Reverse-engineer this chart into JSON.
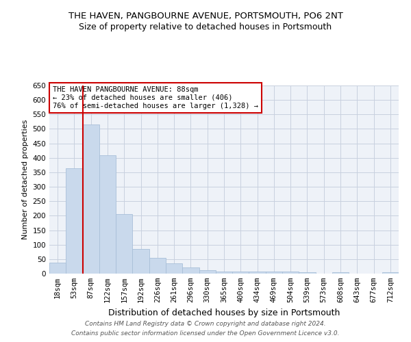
{
  "title": "THE HAVEN, PANGBOURNE AVENUE, PORTSMOUTH, PO6 2NT",
  "subtitle": "Size of property relative to detached houses in Portsmouth",
  "xlabel": "Distribution of detached houses by size in Portsmouth",
  "ylabel": "Number of detached properties",
  "bar_labels": [
    "18sqm",
    "53sqm",
    "87sqm",
    "122sqm",
    "157sqm",
    "192sqm",
    "226sqm",
    "261sqm",
    "296sqm",
    "330sqm",
    "365sqm",
    "400sqm",
    "434sqm",
    "469sqm",
    "504sqm",
    "539sqm",
    "573sqm",
    "608sqm",
    "643sqm",
    "677sqm",
    "712sqm"
  ],
  "bar_values": [
    38,
    365,
    515,
    410,
    205,
    85,
    55,
    35,
    22,
    12,
    8,
    8,
    8,
    8,
    8,
    5,
    0,
    5,
    0,
    0,
    5
  ],
  "bar_color": "#c9d9ec",
  "bar_edge_color": "#a8bfd8",
  "vline_x_index": 2,
  "vline_color": "#cc0000",
  "annotation_text": "THE HAVEN PANGBOURNE AVENUE: 88sqm\n← 23% of detached houses are smaller (406)\n76% of semi-detached houses are larger (1,328) →",
  "annotation_box_color": "#cc0000",
  "ylim": [
    0,
    650
  ],
  "yticks": [
    0,
    50,
    100,
    150,
    200,
    250,
    300,
    350,
    400,
    450,
    500,
    550,
    600,
    650
  ],
  "grid_color": "#c8d0df",
  "bg_color": "#eef2f8",
  "footer_line1": "Contains HM Land Registry data © Crown copyright and database right 2024.",
  "footer_line2": "Contains public sector information licensed under the Open Government Licence v3.0.",
  "title_fontsize": 9.5,
  "subtitle_fontsize": 9,
  "xlabel_fontsize": 9,
  "ylabel_fontsize": 8,
  "tick_fontsize": 7.5,
  "annotation_fontsize": 7.5,
  "footer_fontsize": 6.5
}
